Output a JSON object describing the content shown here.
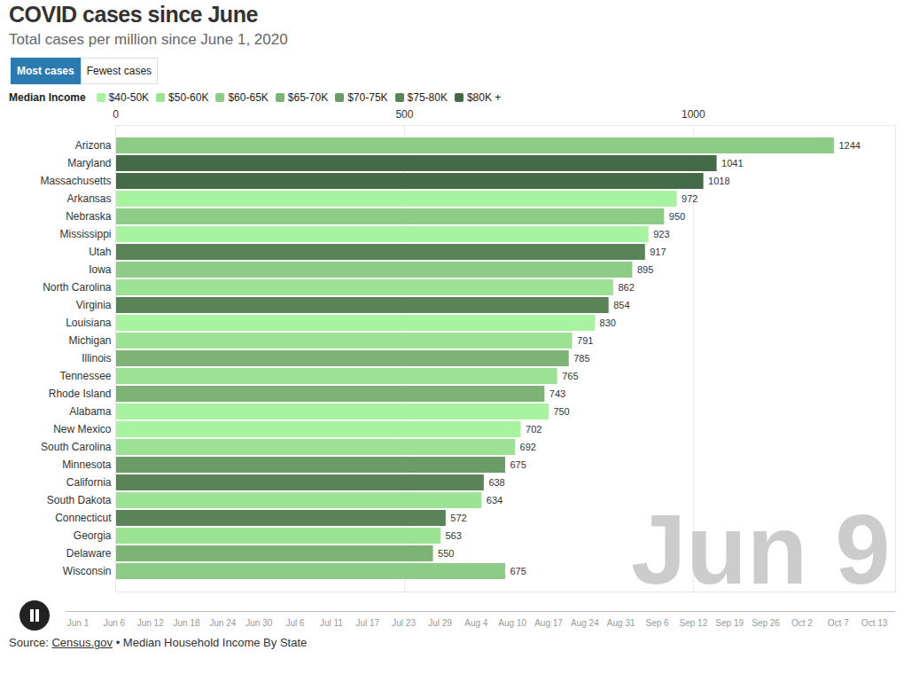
{
  "chart_data": {
    "type": "bar",
    "orientation": "horizontal",
    "title": "COVID cases since June",
    "subtitle": "Total cases per million since June 1, 2020",
    "tabs": [
      "Most cases",
      "Fewest cases"
    ],
    "legend_title": "Median Income",
    "legend": "top-left",
    "annotation": "Jun 9",
    "timeline_dates": [
      "Jun 1",
      "Jun 6",
      "Jun 12",
      "Jun 18",
      "Jun 24",
      "Jun 30",
      "Jul 6",
      "Jul 11",
      "Jul 17",
      "Jul 23",
      "Jul 29",
      "Aug 4",
      "Aug 10",
      "Aug 17",
      "Aug 24",
      "Aug 31",
      "Sep 6",
      "Sep 12",
      "Sep 19",
      "Sep 26",
      "Oct 2",
      "Oct 7",
      "Oct 13"
    ],
    "source": {
      "prefix": "Source:",
      "link": "Census.gov",
      "text": "• Median Household Income By State"
    },
    "categories": [
      "Arizona",
      "Maryland",
      "Massachusetts",
      "Arkansas",
      "Nebraska",
      "Mississippi",
      "Utah",
      "Iowa",
      "North Carolina",
      "Virginia",
      "Louisiana",
      "Michigan",
      "Illinois",
      "Tennessee",
      "Rhode Island",
      "Alabama",
      "New Mexico",
      "South Carolina",
      "Minnesota",
      "California",
      "South Dakota",
      "Connecticut",
      "Georgia",
      "Delaware",
      "Wisconsin"
    ],
    "series": [
      {
        "name": "$40-50K",
        "color": "#a8f3a0",
        "values": [
          null,
          null,
          null,
          972,
          null,
          923,
          null,
          null,
          null,
          null,
          830,
          null,
          null,
          null,
          null,
          750,
          702,
          null,
          null,
          null,
          null,
          null,
          null,
          null,
          null
        ]
      },
      {
        "name": "$50-60K",
        "color": "#9ce294",
        "values": [
          null,
          null,
          null,
          null,
          null,
          null,
          null,
          null,
          862,
          null,
          null,
          791,
          null,
          765,
          null,
          null,
          null,
          692,
          null,
          null,
          634,
          null,
          563,
          null,
          null
        ]
      },
      {
        "name": "$60-65K",
        "color": "#8dcc86",
        "values": [
          1244,
          null,
          null,
          null,
          950,
          null,
          null,
          895,
          null,
          null,
          null,
          null,
          null,
          null,
          null,
          null,
          null,
          null,
          null,
          null,
          null,
          null,
          null,
          null,
          675
        ]
      },
      {
        "name": "$65-70K",
        "color": "#7db476",
        "values": [
          null,
          null,
          null,
          null,
          null,
          null,
          null,
          null,
          null,
          null,
          null,
          null,
          785,
          null,
          743,
          null,
          null,
          null,
          null,
          null,
          null,
          null,
          null,
          550,
          null
        ]
      },
      {
        "name": "$70-75K",
        "color": "#6b9c67",
        "values": [
          null,
          null,
          null,
          null,
          null,
          null,
          null,
          null,
          null,
          null,
          null,
          null,
          null,
          null,
          null,
          null,
          null,
          null,
          675,
          null,
          null,
          null,
          null,
          null,
          null
        ]
      },
      {
        "name": "$75-80K",
        "color": "#5a8458",
        "values": [
          null,
          null,
          null,
          null,
          null,
          null,
          917,
          null,
          null,
          854,
          null,
          null,
          null,
          null,
          null,
          null,
          null,
          null,
          null,
          638,
          null,
          572,
          null,
          null,
          null
        ]
      },
      {
        "name": "$80K +",
        "color": "#456a47",
        "values": [
          null,
          1041,
          1018,
          null,
          null,
          null,
          null,
          null,
          null,
          null,
          null,
          null,
          null,
          null,
          null,
          null,
          null,
          null,
          null,
          null,
          null,
          null,
          null,
          null,
          null
        ]
      }
    ],
    "xlim": [
      0,
      1350
    ],
    "xticks": [
      0,
      500,
      1000
    ],
    "grid": true,
    "stacked": false,
    "data_labels": true
  }
}
